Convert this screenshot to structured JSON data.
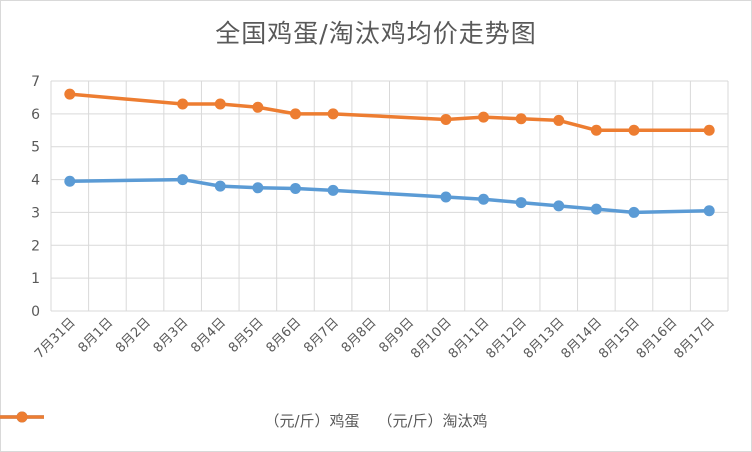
{
  "chart_data": {
    "type": "line",
    "title": "全国鸡蛋/淘汰鸡均价走势图",
    "categories": [
      "7月31日",
      "8月1日",
      "8月2日",
      "8月3日",
      "8月4日",
      "8月5日",
      "8月6日",
      "8月7日",
      "8月8日",
      "8月9日",
      "8月10日",
      "8月11日",
      "8月12日",
      "8月13日",
      "8月14日",
      "8月15日",
      "8月16日",
      "8月17日"
    ],
    "ylim": [
      0,
      7
    ],
    "yticks": [
      "0",
      "1",
      "2",
      "3",
      "4",
      "5",
      "6",
      "7"
    ],
    "grid": true,
    "legend_position": "bottom",
    "series": [
      {
        "name": "（元/斤）鸡蛋",
        "color": "#5b9bd5",
        "points": [
          {
            "x": "7月31日",
            "y": 3.95
          },
          {
            "x": "8月3日",
            "y": 4.0
          },
          {
            "x": "8月4日",
            "y": 3.8
          },
          {
            "x": "8月5日",
            "y": 3.75
          },
          {
            "x": "8月6日",
            "y": 3.73
          },
          {
            "x": "8月7日",
            "y": 3.67
          },
          {
            "x": "8月10日",
            "y": 3.47
          },
          {
            "x": "8月11日",
            "y": 3.4
          },
          {
            "x": "8月12日",
            "y": 3.3
          },
          {
            "x": "8月13日",
            "y": 3.2
          },
          {
            "x": "8月14日",
            "y": 3.1
          },
          {
            "x": "8月15日",
            "y": 3.0
          },
          {
            "x": "8月17日",
            "y": 3.05
          }
        ]
      },
      {
        "name": "（元/斤）淘汰鸡",
        "color": "#ed7d31",
        "points": [
          {
            "x": "7月31日",
            "y": 6.6
          },
          {
            "x": "8月3日",
            "y": 6.3
          },
          {
            "x": "8月4日",
            "y": 6.3
          },
          {
            "x": "8月5日",
            "y": 6.2
          },
          {
            "x": "8月6日",
            "y": 6.0
          },
          {
            "x": "8月7日",
            "y": 6.0
          },
          {
            "x": "8月10日",
            "y": 5.83
          },
          {
            "x": "8月11日",
            "y": 5.9
          },
          {
            "x": "8月12日",
            "y": 5.85
          },
          {
            "x": "8月13日",
            "y": 5.8
          },
          {
            "x": "8月14日",
            "y": 5.5
          },
          {
            "x": "8月15日",
            "y": 5.5
          },
          {
            "x": "8月17日",
            "y": 5.5
          }
        ]
      }
    ]
  }
}
